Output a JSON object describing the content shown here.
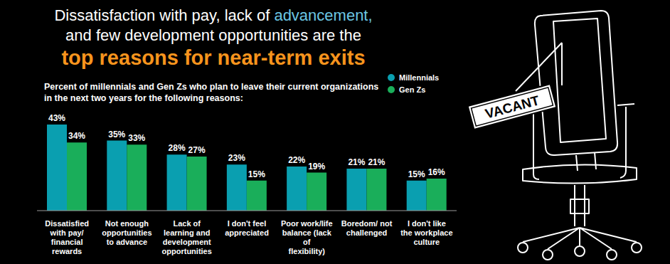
{
  "chart_data": {
    "type": "bar",
    "title": "Dissatisfaction with pay, lack of advancement, and few development opportunities are the top reasons for near-term exits",
    "subtitle": "Percent of millennials and Gen Zs who plan to leave their current organizations in the next two years for the following reasons:",
    "annotation": "VACANT",
    "categories": [
      "Dissatisfied with pay/ financial rewards",
      "Not enough opportunities to advance",
      "Lack of learning and development opportunities",
      "I don't feel appreciated",
      "Poor work/life balance (lack of flexibility)",
      "Boredom/ not challenged",
      "I don't like the workplace culture"
    ],
    "series": [
      {
        "name": "Millennials",
        "color": "#0a9fb0",
        "values": [
          43,
          35,
          28,
          23,
          22,
          21,
          15
        ],
        "value_labels": [
          "43%",
          "35%",
          "28%",
          "23%",
          "22%",
          "21%",
          "15%"
        ]
      },
      {
        "name": "Gen Zs",
        "color": "#1aae5a",
        "values": [
          34,
          33,
          27,
          15,
          19,
          21,
          16
        ],
        "value_labels": [
          "34%",
          "33%",
          "27%",
          "15%",
          "19%",
          "21%",
          "16%"
        ]
      }
    ],
    "data_labels": true,
    "tick_labels": false,
    "legend": "top right"
  }
}
